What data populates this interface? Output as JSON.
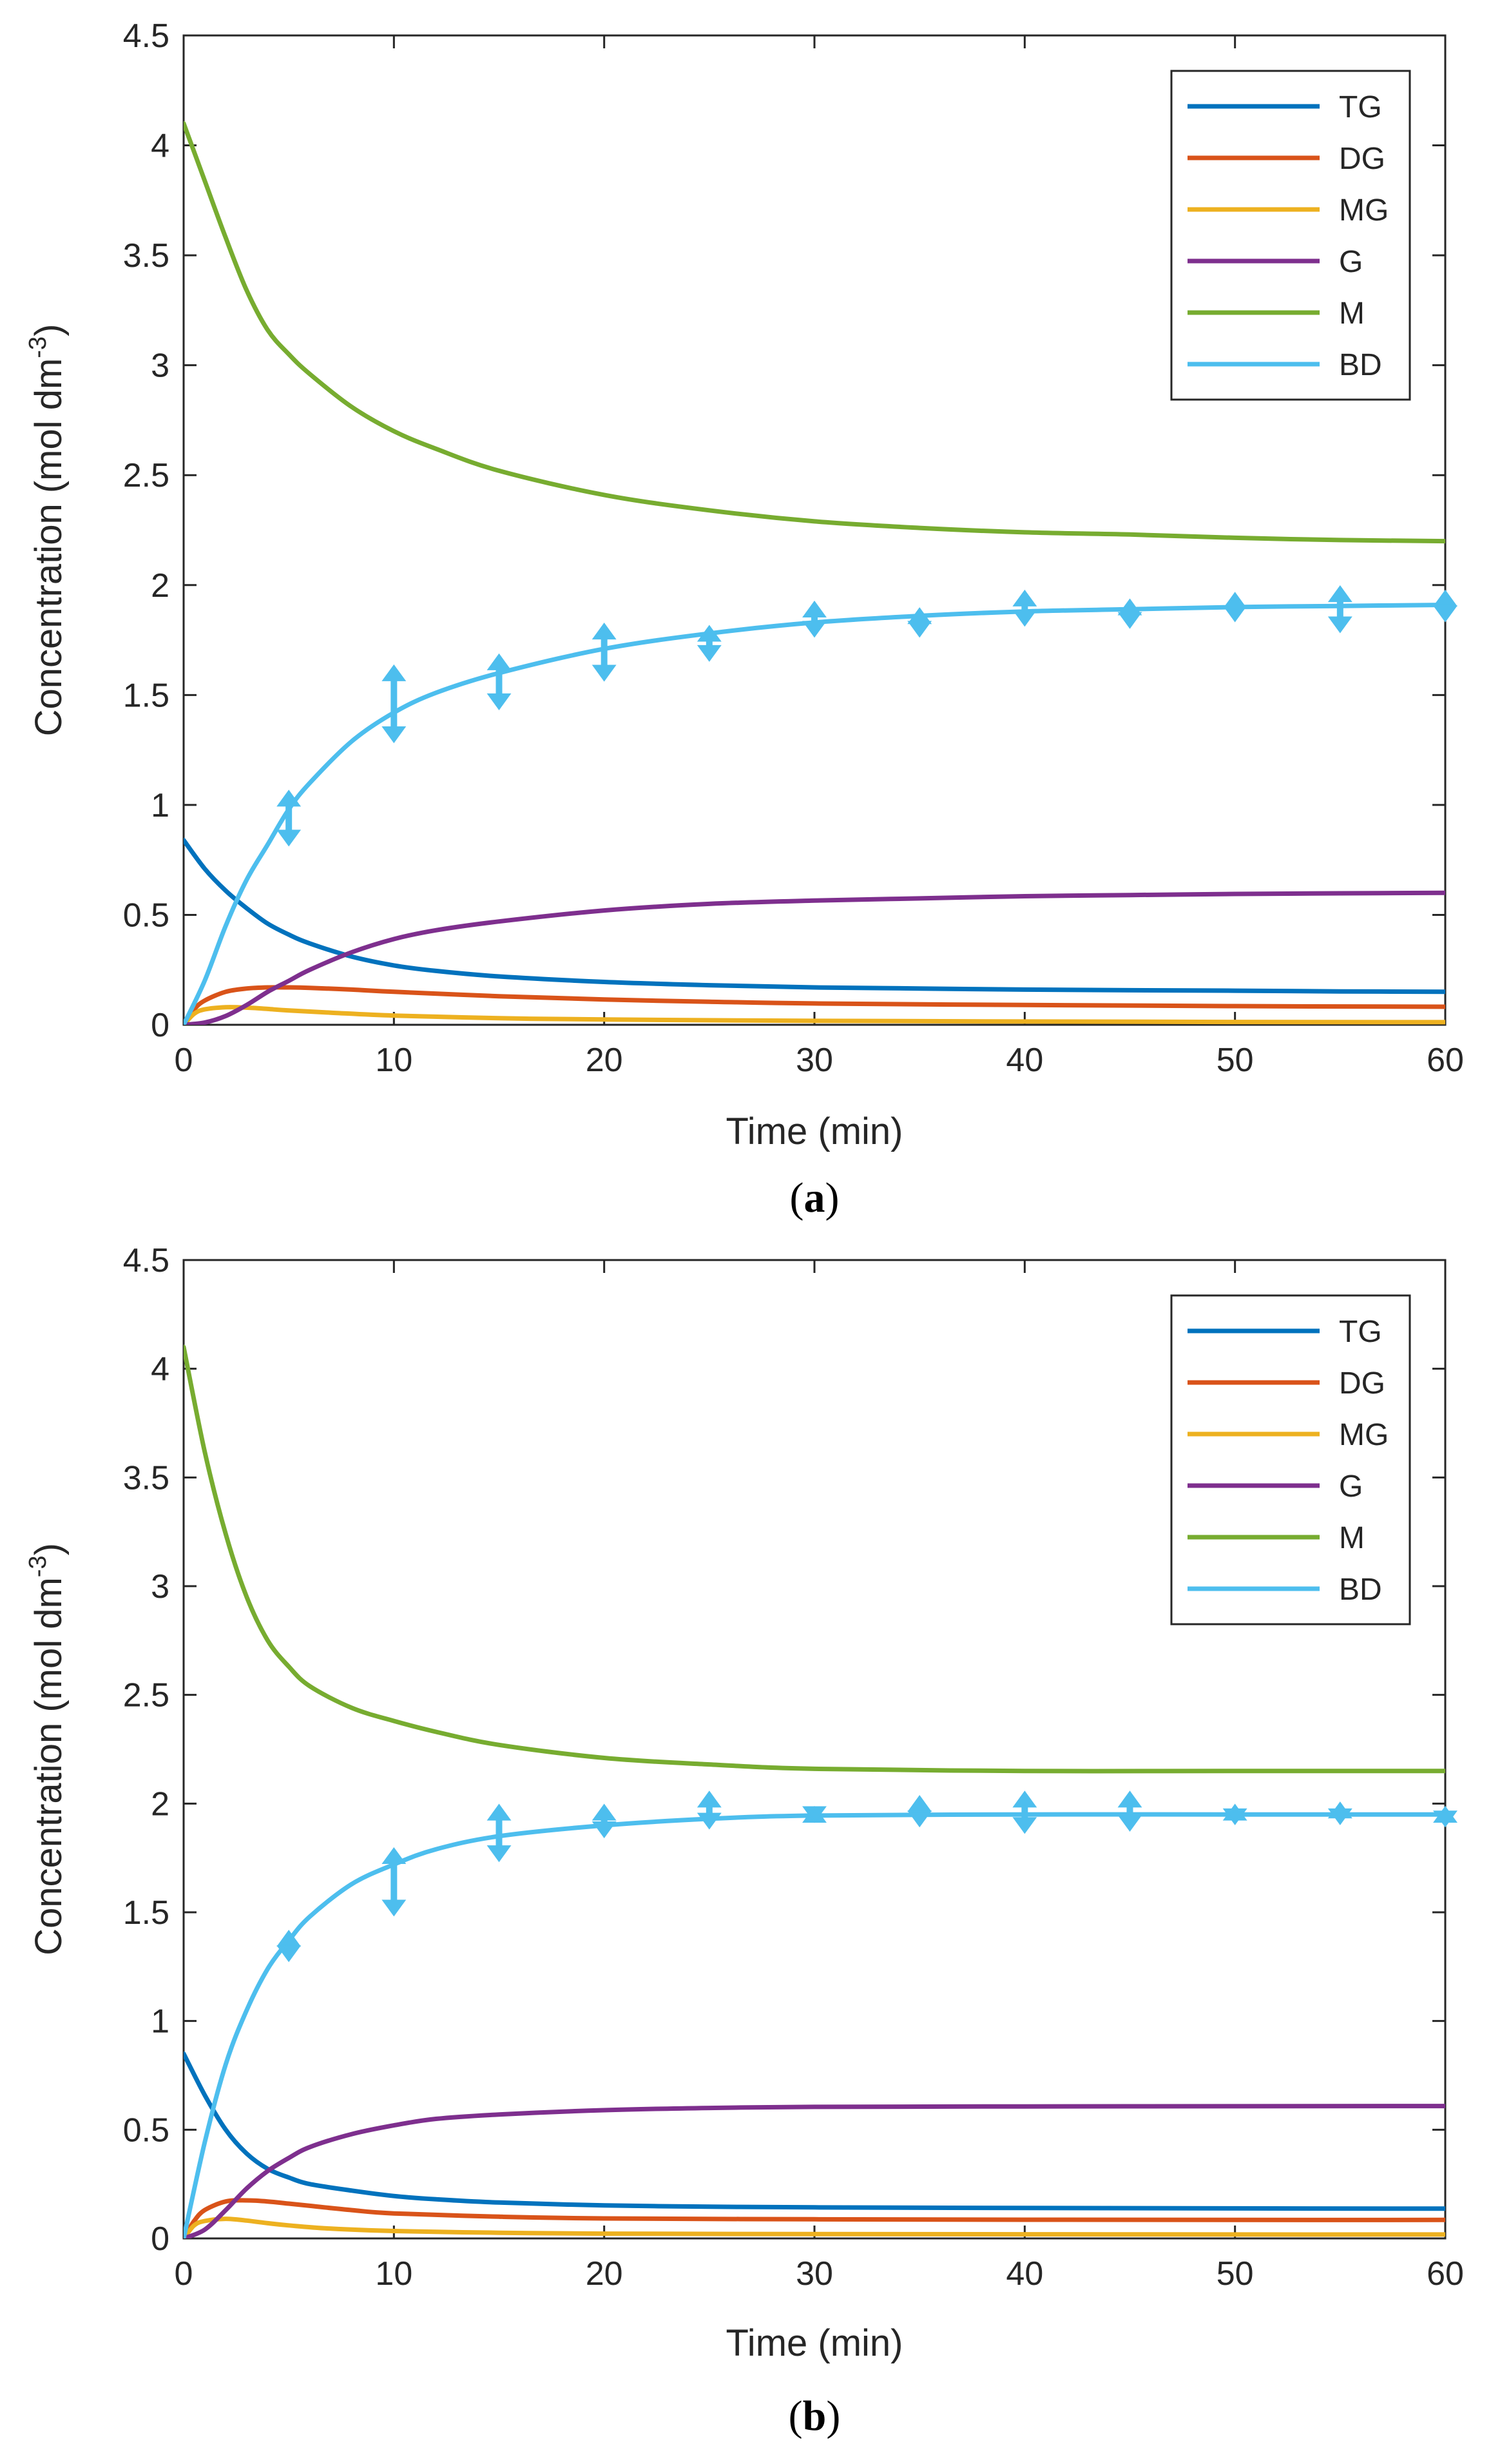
{
  "chart_data": [
    {
      "type": "line",
      "panel_label": "a",
      "xlabel": "Time (min)",
      "ylabel_main": "Concentration (mol dm",
      "ylabel_sup": "-3",
      "ylabel_close": ")",
      "xlim": [
        0,
        60
      ],
      "ylim": [
        0,
        4.5
      ],
      "xticks": [
        "0",
        "10",
        "20",
        "30",
        "40",
        "50",
        "60"
      ],
      "yticks": [
        "0",
        "0.5",
        "1",
        "1.5",
        "2",
        "2.5",
        "3",
        "3.5",
        "4",
        "4.5"
      ],
      "legend_position": "top-right",
      "series": [
        {
          "name": "TG",
          "color": "#0072BD",
          "x": [
            0,
            1,
            2,
            3,
            4,
            5,
            6,
            8,
            10,
            12,
            15,
            20,
            25,
            30,
            35,
            40,
            45,
            50,
            55,
            60
          ],
          "y": [
            0.84,
            0.71,
            0.61,
            0.53,
            0.46,
            0.41,
            0.37,
            0.31,
            0.27,
            0.245,
            0.22,
            0.195,
            0.18,
            0.17,
            0.165,
            0.16,
            0.157,
            0.155,
            0.152,
            0.15
          ]
        },
        {
          "name": "DG",
          "color": "#D95319",
          "x": [
            0,
            0.5,
            1,
            2,
            3,
            4,
            5,
            6,
            8,
            10,
            15,
            20,
            25,
            30,
            40,
            50,
            60
          ],
          "y": [
            0,
            0.07,
            0.11,
            0.15,
            0.165,
            0.17,
            0.17,
            0.168,
            0.16,
            0.15,
            0.13,
            0.115,
            0.105,
            0.097,
            0.09,
            0.085,
            0.082
          ]
        },
        {
          "name": "MG",
          "color": "#EDB120",
          "x": [
            0,
            0.5,
            1,
            2,
            3,
            4,
            5,
            7,
            10,
            15,
            20,
            30,
            40,
            50,
            60
          ],
          "y": [
            0,
            0.05,
            0.07,
            0.08,
            0.078,
            0.072,
            0.065,
            0.055,
            0.042,
            0.03,
            0.024,
            0.018,
            0.015,
            0.013,
            0.012
          ]
        },
        {
          "name": "G",
          "color": "#7E2F8E",
          "x": [
            0,
            1,
            2,
            3,
            4,
            5,
            6,
            8,
            10,
            12,
            15,
            20,
            25,
            30,
            35,
            40,
            45,
            50,
            55,
            60
          ],
          "y": [
            0,
            0.01,
            0.04,
            0.09,
            0.15,
            0.2,
            0.25,
            0.33,
            0.39,
            0.43,
            0.47,
            0.52,
            0.55,
            0.565,
            0.575,
            0.585,
            0.59,
            0.595,
            0.598,
            0.6
          ]
        },
        {
          "name": "M",
          "color": "#77AC30",
          "x": [
            0,
            1,
            2,
            3,
            4,
            5,
            6,
            8,
            10,
            12,
            15,
            20,
            25,
            30,
            35,
            40,
            45,
            50,
            55,
            60
          ],
          "y": [
            4.1,
            3.84,
            3.58,
            3.34,
            3.16,
            3.05,
            2.96,
            2.81,
            2.7,
            2.62,
            2.52,
            2.41,
            2.34,
            2.29,
            2.26,
            2.24,
            2.23,
            2.215,
            2.205,
            2.2
          ]
        },
        {
          "name": "BD",
          "color": "#4DBEEE",
          "x": [
            0,
            1,
            2,
            3,
            4,
            5,
            6,
            8,
            10,
            12,
            15,
            20,
            25,
            30,
            35,
            40,
            45,
            50,
            55,
            60
          ],
          "y": [
            0,
            0.2,
            0.45,
            0.66,
            0.82,
            0.98,
            1.1,
            1.29,
            1.42,
            1.51,
            1.6,
            1.71,
            1.78,
            1.83,
            1.86,
            1.88,
            1.89,
            1.9,
            1.905,
            1.91
          ]
        }
      ],
      "error_bars": {
        "name": "BD",
        "color": "#4DBEEE",
        "x": [
          5,
          10,
          15,
          20,
          25,
          30,
          35,
          40,
          45,
          50,
          55,
          60
        ],
        "low": [
          0.83,
          1.3,
          1.45,
          1.58,
          1.67,
          1.78,
          1.78,
          1.83,
          1.82,
          1.85,
          1.8,
          1.85
        ],
        "high": [
          1.05,
          1.62,
          1.67,
          1.81,
          1.8,
          1.91,
          1.88,
          1.96,
          1.92,
          1.95,
          1.98,
          1.96
        ]
      }
    },
    {
      "type": "line",
      "panel_label": "b",
      "xlabel": "Time (min)",
      "ylabel_main": "Concentration (mol dm",
      "ylabel_sup": "-3",
      "ylabel_close": ")",
      "xlim": [
        0,
        60
      ],
      "ylim": [
        0,
        4.5
      ],
      "xticks": [
        "0",
        "10",
        "20",
        "30",
        "40",
        "50",
        "60"
      ],
      "yticks": [
        "0",
        "0.5",
        "1",
        "1.5",
        "2",
        "2.5",
        "3",
        "3.5",
        "4",
        "4.5"
      ],
      "legend_position": "top-right",
      "series": [
        {
          "name": "TG",
          "color": "#0072BD",
          "x": [
            0,
            1,
            2,
            3,
            4,
            5,
            6,
            8,
            10,
            12,
            15,
            20,
            25,
            30,
            40,
            50,
            60
          ],
          "y": [
            0.85,
            0.66,
            0.5,
            0.39,
            0.32,
            0.28,
            0.25,
            0.22,
            0.195,
            0.18,
            0.165,
            0.152,
            0.146,
            0.143,
            0.14,
            0.138,
            0.137
          ]
        },
        {
          "name": "DG",
          "color": "#D95319",
          "x": [
            0,
            0.5,
            1,
            2,
            3,
            4,
            5,
            6,
            8,
            10,
            15,
            20,
            30,
            40,
            50,
            60
          ],
          "y": [
            0,
            0.08,
            0.13,
            0.17,
            0.175,
            0.17,
            0.16,
            0.15,
            0.13,
            0.115,
            0.1,
            0.092,
            0.088,
            0.086,
            0.085,
            0.085
          ]
        },
        {
          "name": "MG",
          "color": "#EDB120",
          "x": [
            0,
            0.5,
            1,
            2,
            3,
            4,
            5,
            7,
            10,
            15,
            20,
            30,
            40,
            50,
            60
          ],
          "y": [
            0,
            0.06,
            0.08,
            0.09,
            0.082,
            0.07,
            0.06,
            0.045,
            0.034,
            0.026,
            0.022,
            0.02,
            0.019,
            0.018,
            0.018
          ]
        },
        {
          "name": "G",
          "color": "#7E2F8E",
          "x": [
            0,
            1,
            2,
            3,
            4,
            5,
            6,
            8,
            10,
            12,
            15,
            20,
            25,
            30,
            40,
            50,
            60
          ],
          "y": [
            0,
            0.04,
            0.13,
            0.23,
            0.31,
            0.37,
            0.42,
            0.48,
            0.52,
            0.55,
            0.57,
            0.59,
            0.6,
            0.605,
            0.607,
            0.608,
            0.609
          ]
        },
        {
          "name": "M",
          "color": "#77AC30",
          "x": [
            0,
            1,
            2,
            3,
            4,
            5,
            6,
            8,
            10,
            12,
            15,
            20,
            25,
            30,
            40,
            50,
            60
          ],
          "y": [
            4.1,
            3.62,
            3.24,
            2.95,
            2.75,
            2.63,
            2.54,
            2.44,
            2.38,
            2.33,
            2.27,
            2.21,
            2.18,
            2.16,
            2.15,
            2.15,
            2.15
          ]
        },
        {
          "name": "BD",
          "color": "#4DBEEE",
          "x": [
            0,
            1,
            2,
            3,
            4,
            5,
            6,
            8,
            10,
            12,
            15,
            20,
            25,
            30,
            40,
            50,
            60
          ],
          "y": [
            0,
            0.44,
            0.8,
            1.05,
            1.24,
            1.37,
            1.48,
            1.63,
            1.72,
            1.79,
            1.85,
            1.9,
            1.93,
            1.945,
            1.95,
            1.95,
            1.95
          ]
        }
      ],
      "error_bars": {
        "name": "BD",
        "color": "#4DBEEE",
        "x": [
          5,
          10,
          15,
          20,
          25,
          30,
          35,
          40,
          45,
          50,
          55,
          60
        ],
        "low": [
          1.29,
          1.5,
          1.75,
          1.86,
          1.9,
          1.93,
          1.91,
          1.88,
          1.89,
          1.92,
          1.92,
          1.91
        ],
        "high": [
          1.4,
          1.78,
          1.98,
          1.98,
          2.04,
          1.97,
          2.02,
          2.04,
          2.04,
          1.98,
          1.99,
          1.97
        ]
      }
    }
  ]
}
